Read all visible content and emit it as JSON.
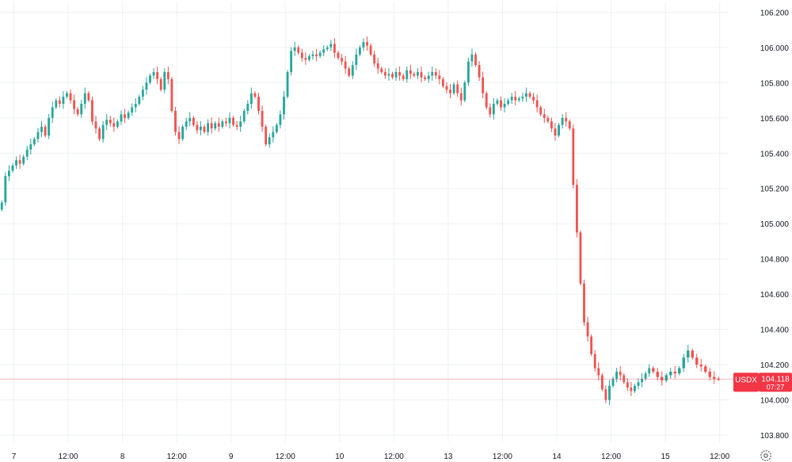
{
  "colors": {
    "up": "#26a69a",
    "down": "#ef5350",
    "grid": "#eef0f4",
    "axis_text": "#131722",
    "badge_bg": "#f23645",
    "badge_text": "#ffffff"
  },
  "chart_data": {
    "type": "candlestick",
    "title": "",
    "xlabel": "",
    "ylabel": "",
    "ylim": [
      103.76,
      106.26
    ],
    "grid": true,
    "y_ticks": [
      "106.200",
      "106.000",
      "105.800",
      "105.600",
      "105.400",
      "105.200",
      "105.000",
      "104.800",
      "104.600",
      "104.400",
      "104.200",
      "104.000",
      "103.800"
    ],
    "x_ticks": [
      "7",
      "12:00",
      "8",
      "12:00",
      "9",
      "12:00",
      "10",
      "12:00",
      "13",
      "12:00",
      "14",
      "12:00",
      "15",
      "12:00"
    ],
    "symbol": "USDX",
    "last_price": "104.118",
    "countdown": "07:27",
    "segments": [
      {
        "session": "7",
        "closes": [
          105.12,
          105.27,
          105.3,
          105.33,
          105.36,
          105.34,
          105.38,
          105.42,
          105.45,
          105.48,
          105.52,
          105.55,
          105.5,
          105.6,
          105.66,
          105.7,
          105.68,
          105.72,
          105.74,
          105.7,
          105.65,
          105.62,
          105.68,
          105.74,
          105.7,
          105.58,
          105.54,
          105.48,
          105.56,
          105.59
        ]
      },
      {
        "session": "8",
        "closes": [
          105.57,
          105.55,
          105.58,
          105.62,
          105.6,
          105.63,
          105.66,
          105.68,
          105.72,
          105.76,
          105.8,
          105.84,
          105.86,
          105.82,
          105.76,
          105.86,
          105.82,
          105.64,
          105.52,
          105.48,
          105.55,
          105.58,
          105.6,
          105.56,
          105.53,
          105.55,
          105.52,
          105.57,
          105.54,
          105.57
        ]
      },
      {
        "session": "9",
        "closes": [
          105.55,
          105.58,
          105.57,
          105.6,
          105.56,
          105.55,
          105.58,
          105.64,
          105.68,
          105.74,
          105.72,
          105.64,
          105.55,
          105.45,
          105.49,
          105.52,
          105.56,
          105.62,
          105.72,
          105.86,
          105.98,
          106.0,
          105.97,
          105.94,
          105.93,
          105.95,
          105.96,
          105.95,
          105.97,
          105.99
        ]
      },
      {
        "session": "10",
        "closes": [
          106.0,
          106.02,
          105.97,
          105.94,
          105.92,
          105.88,
          105.84,
          105.9,
          105.96,
          106.0,
          106.03,
          106.01,
          105.96,
          105.91,
          105.88,
          105.86,
          105.84,
          105.85,
          105.83,
          105.86,
          105.84,
          105.82,
          105.87,
          105.85,
          105.84,
          105.86,
          105.83,
          105.82,
          105.84,
          105.86
        ]
      },
      {
        "session": "13",
        "closes": [
          105.84,
          105.82,
          105.78,
          105.76,
          105.74,
          105.79,
          105.74,
          105.7,
          105.8,
          105.92,
          105.96,
          105.9,
          105.83,
          105.74,
          105.66,
          105.62,
          105.68,
          105.7,
          105.66,
          105.68,
          105.7,
          105.72,
          105.7,
          105.71,
          105.72,
          105.74,
          105.72,
          105.7,
          105.66,
          105.62
        ]
      },
      {
        "session": "14",
        "closes": [
          105.6,
          105.58,
          105.54,
          105.5,
          105.56,
          105.6,
          105.58,
          105.54,
          105.22,
          104.95,
          104.66,
          104.44,
          104.36,
          104.26,
          104.18,
          104.14,
          104.06,
          104.0,
          104.08,
          104.12,
          104.16,
          104.14,
          104.1,
          104.07,
          104.05,
          104.08,
          104.1,
          104.12,
          104.15,
          104.18
        ]
      },
      {
        "session": "15",
        "closes": [
          104.16,
          104.13,
          104.11,
          104.14,
          104.16,
          104.15,
          104.18,
          104.24,
          104.28,
          104.24,
          104.2,
          104.19,
          104.16,
          104.13,
          104.12,
          104.118
        ]
      }
    ]
  }
}
